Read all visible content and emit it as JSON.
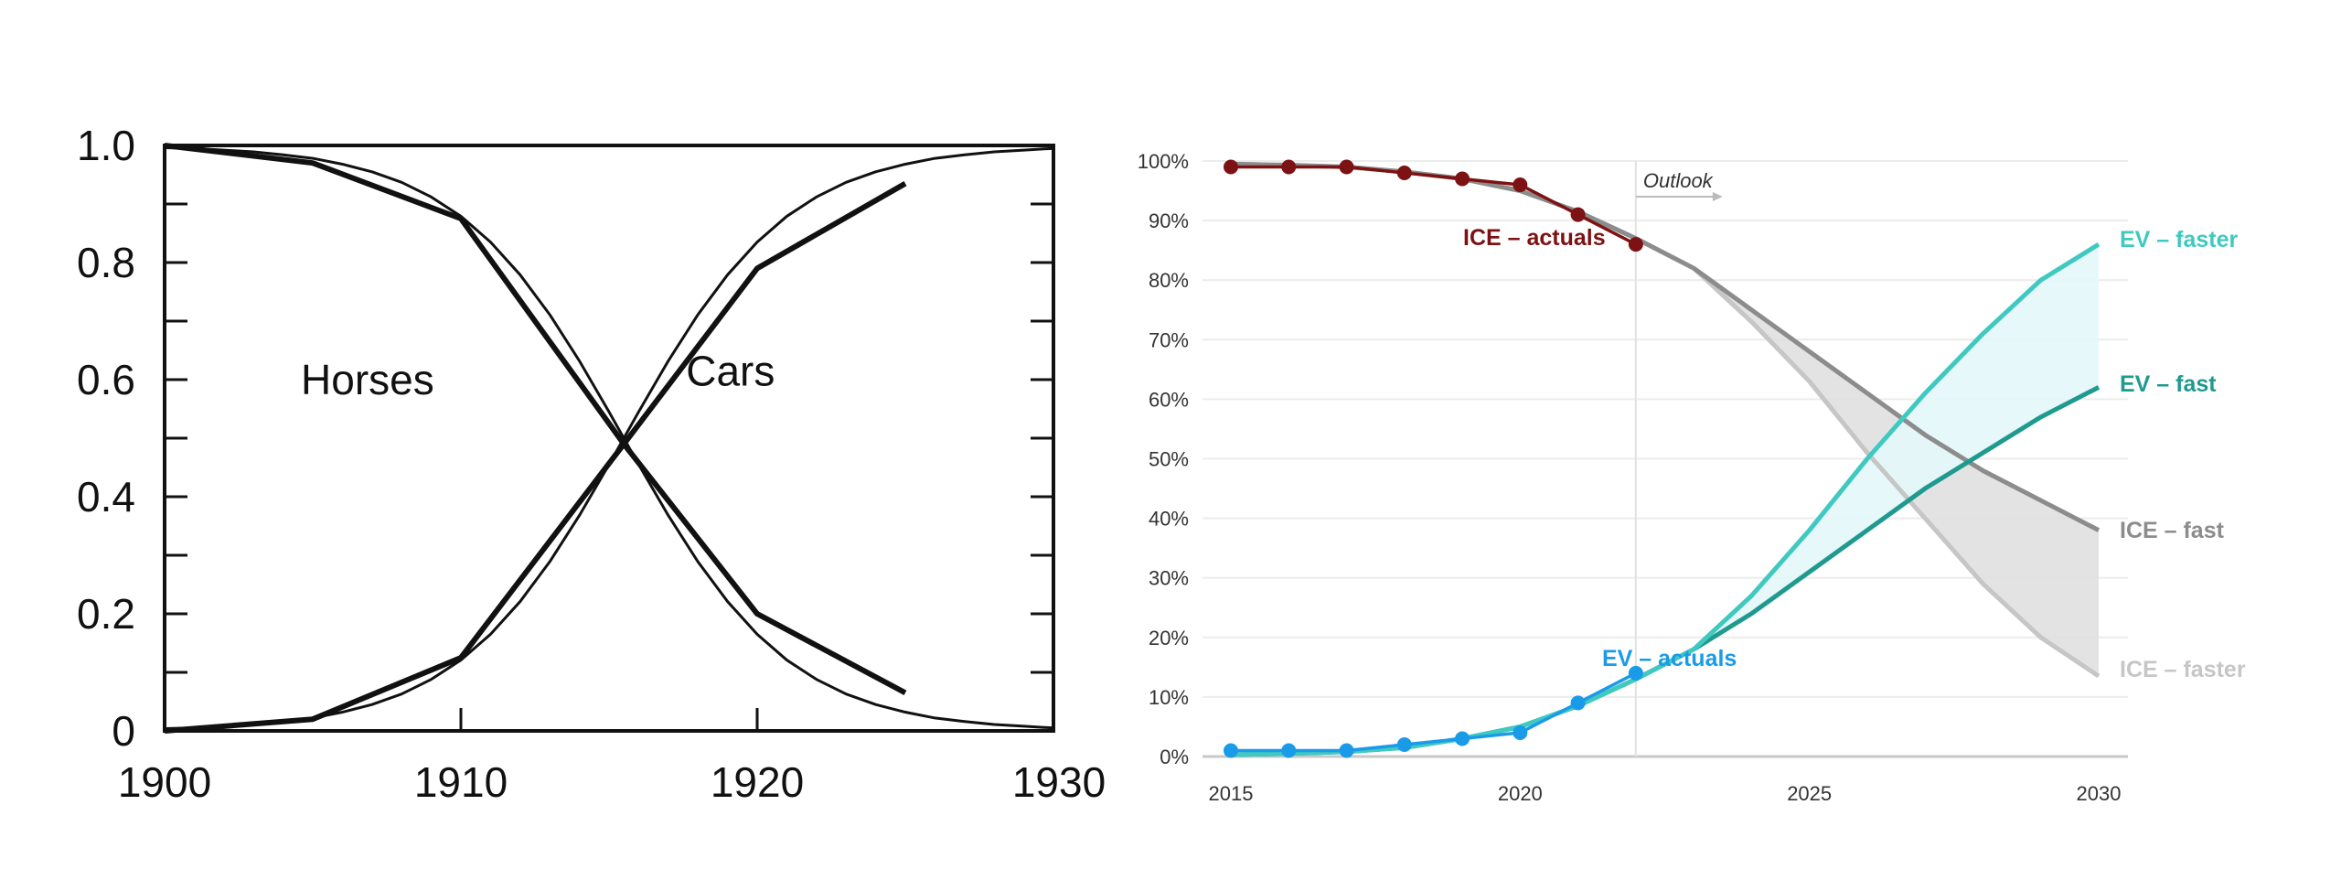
{
  "chart_data": [
    {
      "type": "line",
      "xlim": [
        1900,
        1930
      ],
      "ylim": [
        0,
        1
      ],
      "x_ticks": [
        "1900",
        "1910",
        "1920",
        "1930"
      ],
      "y_ticks": [
        "0",
        "0.2",
        "0.4",
        "0.6",
        "0.8",
        "1.0"
      ],
      "grid": false,
      "annotations": [
        "Horses",
        "Cars"
      ],
      "series": [
        {
          "name": "Horses",
          "style": "thick",
          "x": [
            1900,
            1905,
            1910,
            1915.5,
            1920,
            1925
          ],
          "y": [
            1.0,
            0.97,
            0.875,
            0.49,
            0.2,
            0.065
          ]
        },
        {
          "name": "Cars",
          "style": "thick",
          "x": [
            1900,
            1905,
            1910,
            1915.5,
            1920,
            1925
          ],
          "y": [
            0.0,
            0.02,
            0.125,
            0.49,
            0.79,
            0.935
          ]
        },
        {
          "name": "Cars",
          "style": "thin",
          "x": [
            1900,
            1901,
            1902,
            1903,
            1904,
            1905,
            1906,
            1907,
            1908,
            1909,
            1910,
            1911,
            1912,
            1913,
            1914,
            1915,
            1916,
            1917,
            1918,
            1919,
            1920,
            1921,
            1922,
            1923,
            1924,
            1925,
            1926,
            1927,
            1928,
            1929,
            1930
          ],
          "y": [
            0.004,
            0.005,
            0.008,
            0.011,
            0.016,
            0.022,
            0.032,
            0.045,
            0.063,
            0.088,
            0.121,
            0.165,
            0.221,
            0.289,
            0.368,
            0.455,
            0.545,
            0.632,
            0.711,
            0.779,
            0.835,
            0.879,
            0.912,
            0.937,
            0.955,
            0.968,
            0.978,
            0.984,
            0.989,
            0.992,
            0.995
          ]
        },
        {
          "name": "Horses",
          "style": "thin",
          "x": [
            1900,
            1901,
            1902,
            1903,
            1904,
            1905,
            1906,
            1907,
            1908,
            1909,
            1910,
            1911,
            1912,
            1913,
            1914,
            1915,
            1916,
            1917,
            1918,
            1919,
            1920,
            1921,
            1922,
            1923,
            1924,
            1925,
            1926,
            1927,
            1928,
            1929,
            1930
          ],
          "y": [
            0.996,
            0.995,
            0.992,
            0.989,
            0.984,
            0.978,
            0.968,
            0.955,
            0.937,
            0.912,
            0.879,
            0.835,
            0.779,
            0.711,
            0.632,
            0.545,
            0.455,
            0.368,
            0.289,
            0.221,
            0.165,
            0.121,
            0.088,
            0.063,
            0.045,
            0.032,
            0.022,
            0.016,
            0.011,
            0.008,
            0.005
          ]
        }
      ]
    },
    {
      "type": "line",
      "xlim": [
        2015,
        2030
      ],
      "ylim": [
        0,
        100
      ],
      "x_ticks": [
        "2015",
        "2020",
        "2025",
        "2030"
      ],
      "y_ticks": [
        "0%",
        "10%",
        "20%",
        "30%",
        "40%",
        "50%",
        "60%",
        "70%",
        "80%",
        "90%",
        "100%"
      ],
      "grid": true,
      "outlook": {
        "year": 2022,
        "label": "Outlook"
      },
      "colors": {
        "ice_actuals": "#7d1214",
        "ev_actuals": "#1a9be8",
        "ev_faster": "#40c9c1",
        "ev_fast": "#1f9a8f",
        "ice_fast": "#8c8c8c",
        "ice_faster": "#c6c6c6",
        "ev_band": "#e3f7f8",
        "ice_band": "#e0e0e0"
      },
      "series": [
        {
          "name": "ICE – actuals",
          "key": "ice_actuals",
          "markers": true,
          "x": [
            2015,
            2016,
            2017,
            2018,
            2019,
            2020,
            2021,
            2022
          ],
          "y": [
            99,
            99,
            99,
            98,
            97,
            96,
            91,
            86
          ]
        },
        {
          "name": "EV – actuals",
          "key": "ev_actuals",
          "markers": true,
          "x": [
            2015,
            2016,
            2017,
            2018,
            2019,
            2020,
            2021,
            2022
          ],
          "y": [
            1,
            1,
            1,
            2,
            3,
            4,
            9,
            14
          ]
        },
        {
          "name": "ICE – fast",
          "key": "ice_fast",
          "x": [
            2015,
            2016,
            2017,
            2018,
            2019,
            2020,
            2021,
            2022,
            2023,
            2024,
            2025,
            2026,
            2027,
            2028,
            2029,
            2030
          ],
          "y": [
            99.5,
            99.3,
            99,
            98.2,
            97,
            95,
            91.5,
            87,
            82,
            75,
            68,
            61,
            54,
            48,
            43,
            38
          ]
        },
        {
          "name": "ICE – faster",
          "key": "ice_faster",
          "x": [
            2015,
            2016,
            2017,
            2018,
            2019,
            2020,
            2021,
            2022,
            2023,
            2024,
            2025,
            2026,
            2027,
            2028,
            2029,
            2030
          ],
          "y": [
            99.5,
            99.3,
            99,
            98.2,
            97,
            95,
            91.5,
            87,
            82,
            73,
            63,
            51,
            40,
            29,
            20,
            13.5
          ]
        },
        {
          "name": "EV – fast",
          "key": "ev_fast",
          "x": [
            2015,
            2016,
            2017,
            2018,
            2019,
            2020,
            2021,
            2022,
            2023,
            2024,
            2025,
            2026,
            2027,
            2028,
            2029,
            2030
          ],
          "y": [
            0.3,
            0.5,
            0.8,
            1.5,
            3,
            5,
            8.5,
            13,
            18,
            24,
            31,
            38,
            45,
            51,
            57,
            62
          ]
        },
        {
          "name": "EV – faster",
          "key": "ev_faster",
          "x": [
            2015,
            2016,
            2017,
            2018,
            2019,
            2020,
            2021,
            2022,
            2023,
            2024,
            2025,
            2026,
            2027,
            2028,
            2029,
            2030
          ],
          "y": [
            0.3,
            0.5,
            0.8,
            1.5,
            3,
            5,
            8.5,
            13,
            18,
            27,
            38,
            50,
            61,
            71,
            80,
            86
          ]
        }
      ]
    }
  ]
}
